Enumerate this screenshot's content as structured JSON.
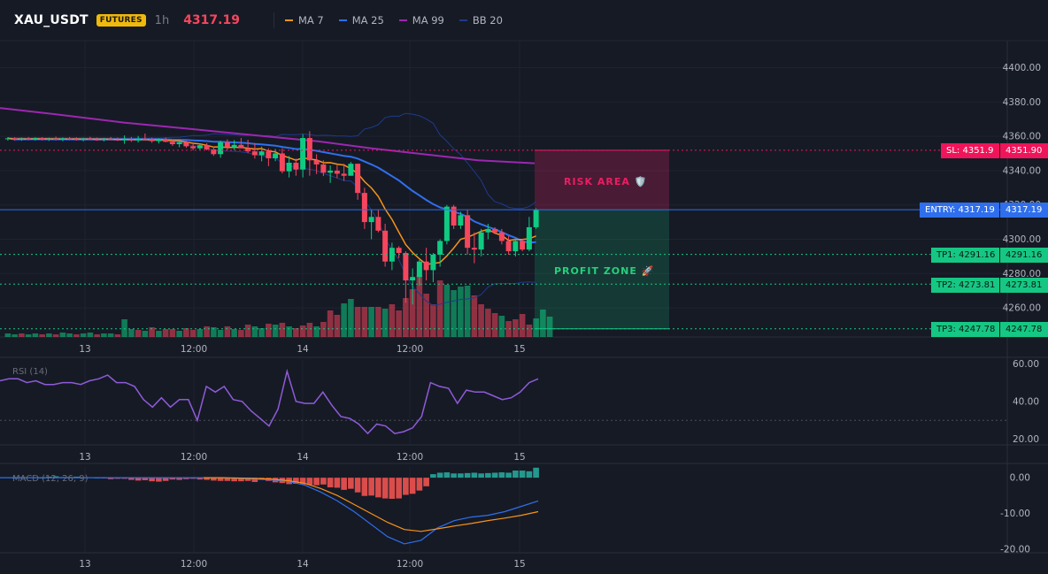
{
  "header": {
    "symbol": "XAU_USDT",
    "badge": "FUTURES",
    "timeframe": "1h",
    "last_price": "4317.19"
  },
  "legend": [
    {
      "label": "MA 7",
      "color": "#f7931a"
    },
    {
      "label": "MA 25",
      "color": "#2f6fed"
    },
    {
      "label": "MA 99",
      "color": "#9c27b0"
    },
    {
      "label": "BB 20",
      "color": "#1e3a8a"
    }
  ],
  "colors": {
    "up": "#0ecb81",
    "down": "#f6465d",
    "background": "#161a25",
    "entry": "#2f6fed",
    "sl": "#f0145a",
    "tp": "#16c784"
  },
  "zones": {
    "risk_label": "RISK AREA 🛡️",
    "profit_label": "PROFIT ZONE 🚀"
  },
  "levels": {
    "sl": {
      "tag": "SL: 4351.9",
      "value": "4351.90"
    },
    "entry": {
      "tag": "ENTRY: 4317.19",
      "value": "4317.19"
    },
    "tp1": {
      "tag": "TP1: 4291.16",
      "value": "4291.16"
    },
    "tp2": {
      "tag": "TP2: 4273.81",
      "value": "4273.81"
    },
    "tp3": {
      "tag": "TP3: 4247.78",
      "value": "4247.78"
    }
  },
  "panels": {
    "rsi_label": "RSI (14)",
    "macd_label": "MACD (12, 26, 9)"
  },
  "chart_data": [
    {
      "type": "candlestick",
      "title": "XAU_USDT 1h",
      "x_ticks": [
        "13",
        "12:00",
        "14",
        "12:00",
        "15"
      ],
      "y_ticks": [
        "4400.00",
        "4380.00",
        "4360.00",
        "4340.00",
        "4320.00",
        "4300.00",
        "4280.00",
        "4260.00"
      ],
      "ylim": [
        4241,
        4410
      ],
      "candles": [
        [
          4358.5,
          4359.5,
          4357.5,
          4358.8
        ],
        [
          4358.8,
          4359.4,
          4357.6,
          4358.0
        ],
        [
          4358.0,
          4359.2,
          4357.4,
          4358.6
        ],
        [
          4358.6,
          4359.6,
          4357.8,
          4358.2
        ],
        [
          4358.2,
          4359.4,
          4357.5,
          4358.9
        ],
        [
          4358.9,
          4359.5,
          4357.6,
          4358.1
        ],
        [
          4358.1,
          4359.2,
          4357.3,
          4358.5
        ],
        [
          4358.5,
          4359.8,
          4357.7,
          4358.0
        ],
        [
          4358.0,
          4359.3,
          4357.2,
          4358.7
        ],
        [
          4358.7,
          4359.6,
          4357.8,
          4358.4
        ],
        [
          4358.4,
          4359.4,
          4357.6,
          4357.9
        ],
        [
          4357.9,
          4359.1,
          4357.1,
          4358.6
        ],
        [
          4358.6,
          4359.7,
          4357.9,
          4358.2
        ],
        [
          4358.2,
          4359.3,
          4357.4,
          4358.0
        ],
        [
          4358.0,
          4359.1,
          4357.0,
          4358.4
        ],
        [
          4358.4,
          4359.6,
          4357.7,
          4358.1
        ],
        [
          4358.1,
          4359.3,
          4357.3,
          4357.8
        ],
        [
          4357.8,
          4360.5,
          4355.6,
          4358.2
        ],
        [
          4358.2,
          4359.6,
          4356.8,
          4357.6
        ],
        [
          4357.6,
          4360.2,
          4356.4,
          4358.6
        ],
        [
          4358.6,
          4361.6,
          4357.5,
          4358.3
        ],
        [
          4358.3,
          4359.2,
          4356.2,
          4357.2
        ],
        [
          4357.2,
          4358.9,
          4355.8,
          4358.2
        ],
        [
          4358.2,
          4359.3,
          4356.5,
          4356.8
        ],
        [
          4356.8,
          4357.9,
          4354.4,
          4355.4
        ],
        [
          4355.4,
          4357.2,
          4353.6,
          4356.6
        ],
        [
          4356.6,
          4357.4,
          4353.3,
          4354.2
        ],
        [
          4354.2,
          4355.9,
          4351.8,
          4353.0
        ],
        [
          4353.0,
          4355.8,
          4351.8,
          4354.8
        ],
        [
          4354.8,
          4356.0,
          4351.8,
          4352.4
        ],
        [
          4352.4,
          4354.0,
          4348.6,
          4349.6
        ],
        [
          4349.6,
          4357.5,
          4347.5,
          4356.5
        ],
        [
          4356.5,
          4358.2,
          4352.0,
          4353.6
        ],
        [
          4353.6,
          4357.8,
          4352.0,
          4355.0
        ],
        [
          4355.0,
          4359.0,
          4353.4,
          4353.0
        ],
        [
          4353.0,
          4358.0,
          4350.2,
          4351.2
        ],
        [
          4351.2,
          4356.0,
          4347.0,
          4349.0
        ],
        [
          4349.0,
          4354.0,
          4345.4,
          4351.2
        ],
        [
          4351.2,
          4353.0,
          4342.6,
          4347.2
        ],
        [
          4347.2,
          4352.6,
          4345.5,
          4350.0
        ],
        [
          4350.0,
          4353.0,
          4338.4,
          4339.6
        ],
        [
          4339.6,
          4348.5,
          4336.0,
          4344.6
        ],
        [
          4344.6,
          4347.0,
          4337.0,
          4340.6
        ],
        [
          4340.6,
          4361.2,
          4336.0,
          4359.0
        ],
        [
          4359.0,
          4363.0,
          4337.0,
          4346.0
        ],
        [
          4346.0,
          4349.5,
          4338.0,
          4343.6
        ],
        [
          4343.6,
          4346.0,
          4336.8,
          4338.8
        ],
        [
          4338.8,
          4343.0,
          4332.8,
          4340.0
        ],
        [
          4340.0,
          4343.2,
          4335.6,
          4338.2
        ],
        [
          4338.2,
          4344.0,
          4334.0,
          4337.0
        ],
        [
          4337.0,
          4345.0,
          4337.0,
          4344.0
        ],
        [
          4344.0,
          4344.0,
          4323.0,
          4327.0
        ],
        [
          4327.0,
          4330.0,
          4306.0,
          4310.0
        ],
        [
          4310.0,
          4317.0,
          4300.0,
          4313.0
        ],
        [
          4313.0,
          4317.0,
          4304.0,
          4305.0
        ],
        [
          4305.0,
          4309.0,
          4284.0,
          4287.0
        ],
        [
          4287.0,
          4298.0,
          4282.0,
          4295.0
        ],
        [
          4295.0,
          4296.0,
          4289.0,
          4292.0
        ],
        [
          4292.0,
          4293.0,
          4263.0,
          4276.0
        ],
        [
          4276.0,
          4283.0,
          4262.0,
          4278.0
        ],
        [
          4278.0,
          4288.0,
          4273.0,
          4287.0
        ],
        [
          4287.0,
          4295.0,
          4276.0,
          4282.0
        ],
        [
          4282.0,
          4292.0,
          4275.0,
          4291.0
        ],
        [
          4291.0,
          4300.0,
          4284.0,
          4299.0
        ],
        [
          4299.0,
          4320.0,
          4297.0,
          4319.0
        ],
        [
          4319.0,
          4320.0,
          4306.0,
          4308.0
        ],
        [
          4308.0,
          4316.0,
          4306.0,
          4314.0
        ],
        [
          4314.0,
          4317.0,
          4291.0,
          4295.0
        ],
        [
          4295.0,
          4304.0,
          4286.0,
          4294.0
        ],
        [
          4294.0,
          4306.0,
          4290.0,
          4304.0
        ],
        [
          4304.0,
          4309.0,
          4300.0,
          4306.0
        ],
        [
          4306.0,
          4307.0,
          4303.0,
          4304.0
        ],
        [
          4304.0,
          4306.0,
          4297.0,
          4299.0
        ],
        [
          4299.0,
          4302.0,
          4291.0,
          4293.0
        ],
        [
          4293.0,
          4300.0,
          4290.0,
          4299.0
        ],
        [
          4299.0,
          4300.0,
          4293.0,
          4294.0
        ],
        [
          4294.0,
          4313.0,
          4293.0,
          4307.0
        ],
        [
          4307.0,
          4318.0,
          4306.0,
          4317.19
        ]
      ],
      "volume_bars": [
        [
          4,
          "up"
        ],
        [
          3,
          "up"
        ],
        [
          4,
          "down"
        ],
        [
          3,
          "up"
        ],
        [
          4,
          "up"
        ],
        [
          3,
          "down"
        ],
        [
          4,
          "up"
        ],
        [
          3,
          "down"
        ],
        [
          5,
          "up"
        ],
        [
          4,
          "up"
        ],
        [
          3,
          "down"
        ],
        [
          4,
          "up"
        ],
        [
          5,
          "up"
        ],
        [
          3,
          "down"
        ],
        [
          4,
          "up"
        ],
        [
          4,
          "up"
        ],
        [
          3,
          "down"
        ],
        [
          20,
          "up"
        ],
        [
          9,
          "up"
        ],
        [
          8,
          "down"
        ],
        [
          7,
          "up"
        ],
        [
          11,
          "down"
        ],
        [
          7,
          "up"
        ],
        [
          9,
          "down"
        ],
        [
          9,
          "down"
        ],
        [
          7,
          "up"
        ],
        [
          10,
          "down"
        ],
        [
          8,
          "down"
        ],
        [
          9,
          "up"
        ],
        [
          12,
          "down"
        ],
        [
          11,
          "up"
        ],
        [
          8,
          "up"
        ],
        [
          12,
          "down"
        ],
        [
          9,
          "up"
        ],
        [
          8,
          "down"
        ],
        [
          14,
          "down"
        ],
        [
          12,
          "up"
        ],
        [
          10,
          "up"
        ],
        [
          15,
          "down"
        ],
        [
          14,
          "up"
        ],
        [
          16,
          "down"
        ],
        [
          12,
          "up"
        ],
        [
          10,
          "down"
        ],
        [
          13,
          "down"
        ],
        [
          16,
          "down"
        ],
        [
          12,
          "up"
        ],
        [
          17,
          "down"
        ],
        [
          30,
          "down"
        ],
        [
          25,
          "down"
        ],
        [
          38,
          "up"
        ],
        [
          43,
          "up"
        ],
        [
          34,
          "down"
        ],
        [
          34,
          "down"
        ],
        [
          34,
          "up"
        ],
        [
          34,
          "down"
        ],
        [
          32,
          "up"
        ],
        [
          37,
          "down"
        ],
        [
          30,
          "down"
        ],
        [
          44,
          "down"
        ],
        [
          54,
          "down"
        ],
        [
          70,
          "down"
        ],
        [
          49,
          "down"
        ],
        [
          37,
          "down"
        ],
        [
          64,
          "down"
        ],
        [
          59,
          "up"
        ],
        [
          53,
          "up"
        ],
        [
          57,
          "up"
        ],
        [
          58,
          "up"
        ],
        [
          47,
          "down"
        ],
        [
          37,
          "down"
        ],
        [
          32,
          "down"
        ],
        [
          27,
          "down"
        ],
        [
          24,
          "up"
        ],
        [
          18,
          "down"
        ],
        [
          20,
          "down"
        ],
        [
          26,
          "down"
        ],
        [
          14,
          "down"
        ],
        [
          21,
          "up"
        ],
        [
          31,
          "up"
        ],
        [
          23,
          "up"
        ]
      ]
    },
    {
      "type": "line",
      "title": "RSI (14)",
      "x_ticks": [
        "13",
        "12:00",
        "14",
        "12:00",
        "15"
      ],
      "y_ticks": [
        "60.00",
        "40.00",
        "20.00"
      ],
      "ylim": [
        17,
        62
      ],
      "series": [
        {
          "values": [
            51,
            52,
            52,
            50,
            51,
            49,
            49,
            50,
            50,
            49,
            51,
            52,
            54,
            50,
            50,
            48,
            41,
            37,
            42,
            37,
            41,
            41,
            30,
            48,
            45,
            48,
            41,
            40,
            35,
            31,
            27,
            36,
            56,
            40,
            39,
            39,
            45,
            38,
            32,
            31,
            28,
            23,
            28,
            27,
            23,
            24,
            26,
            32,
            50,
            48,
            47,
            39,
            46,
            45,
            45,
            43,
            41,
            42,
            45,
            50,
            52
          ]
        }
      ]
    },
    {
      "type": "bar",
      "title": "MACD (12, 26, 9)",
      "x_ticks": [
        "13",
        "12:00",
        "14",
        "12:00",
        "15"
      ],
      "y_ticks": [
        "0.00",
        "-10.00",
        "-20.00"
      ],
      "ylim": [
        -21,
        3
      ],
      "series": [
        {
          "type": "bar",
          "values": [
            0.1,
            0,
            0.2,
            0.1,
            0.1,
            0,
            0.3,
            0.4,
            0.2,
            0.2,
            0.3,
            0.1,
            0.1,
            0,
            -0.2,
            -0.4,
            -0.3,
            -0.3,
            -0.6,
            -0.8,
            -0.7,
            -1,
            -1.1,
            -0.9,
            -0.5,
            -0.6,
            -0.4,
            -0.3,
            -0.5,
            -0.6,
            -0.8,
            -0.9,
            -0.9,
            -1,
            -1,
            -0.9,
            -1.2,
            -0.6,
            -0.9,
            -1.3,
            -1.5,
            -1.8,
            -1.7,
            -1.9,
            -2.0,
            -2.1,
            -1.9,
            -2.7,
            -2.8,
            -3.4,
            -3.1,
            -4.1,
            -5.1,
            -5.0,
            -5.5,
            -5.8,
            -5.9,
            -5.8,
            -4.8,
            -4.5,
            -3.6,
            -2.4,
            1.0,
            1.4,
            1.5,
            1.2,
            1.2,
            1.3,
            1.4,
            1.2,
            1.3,
            1.4,
            1.5,
            1.4,
            2.0,
            2.0,
            1.8,
            2.8
          ]
        },
        {
          "type": "line",
          "values": [
            0,
            0,
            -0.2,
            -0.4,
            -0.6,
            -1.0,
            -2.0,
            -4.0,
            -6.5,
            -9.5,
            -13.0,
            -16.5,
            -18.5,
            -17.5,
            -14.0,
            -12.0,
            -11.0,
            -10.5,
            -9.5,
            -8.0,
            -6.5
          ]
        },
        {
          "type": "line",
          "values": [
            0,
            0,
            -0.1,
            -0.2,
            -0.4,
            -0.8,
            -1.5,
            -3.0,
            -5.0,
            -7.5,
            -10.0,
            -12.5,
            -14.5,
            -15.0,
            -14.3,
            -13.5,
            -12.8,
            -12.0,
            -11.3,
            -10.5,
            -9.5
          ]
        }
      ]
    }
  ]
}
